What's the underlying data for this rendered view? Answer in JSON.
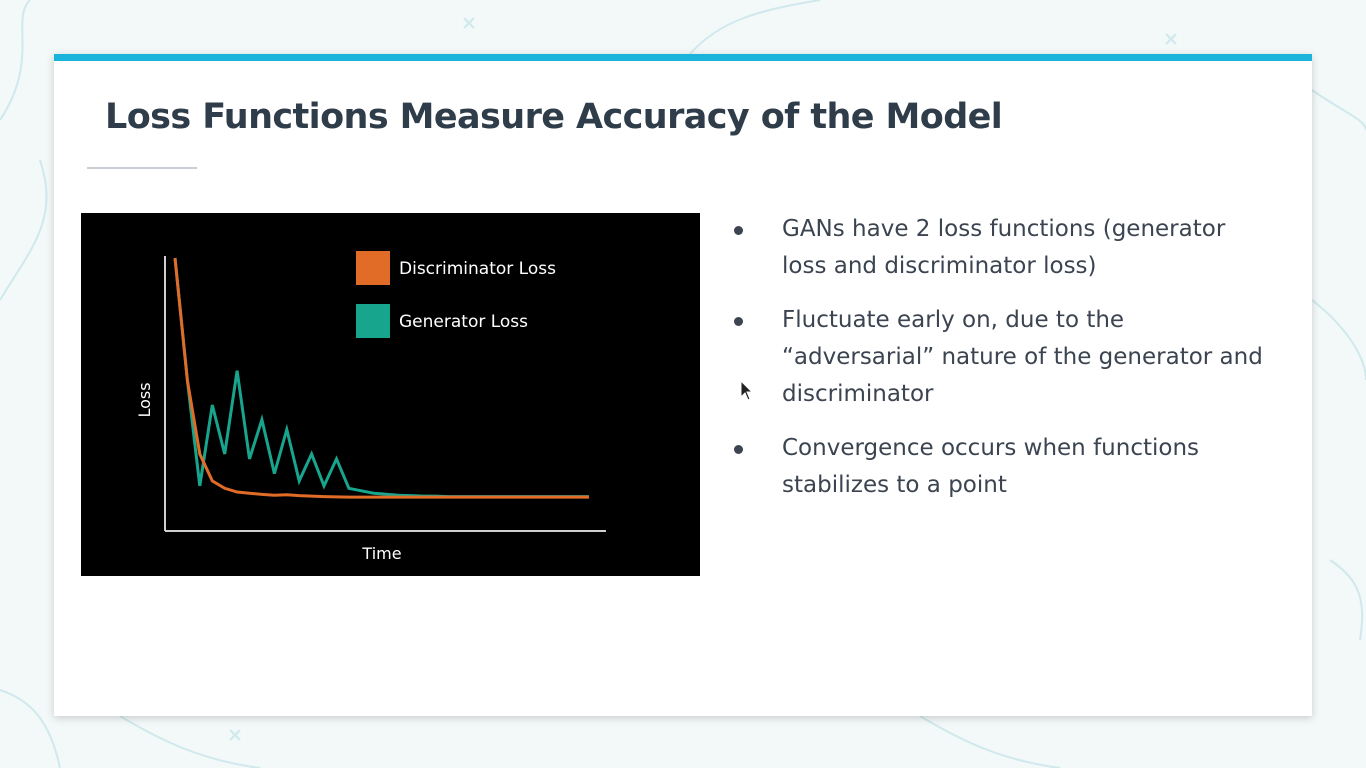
{
  "slide": {
    "title": "Loss Functions Measure Accuracy of the Model",
    "bullets": [
      "GANs have 2 loss functions (generator loss and discriminator loss)",
      "Fluctuate early on, due to the “adversarial” nature of the generator and discriminator",
      "Convergence occurs when functions stabilizes to a point"
    ]
  },
  "colors": {
    "accent": "#1ab3dc",
    "discriminator": "#e06c28",
    "generator": "#18a58e"
  },
  "chart_data": {
    "type": "line",
    "title": "",
    "xlabel": "Time",
    "ylabel": "Loss",
    "grid": false,
    "legend_placement": "top-right",
    "xlim": [
      0,
      100
    ],
    "ylim": [
      0,
      100
    ],
    "x": [
      0,
      3,
      6,
      9,
      12,
      15,
      18,
      21,
      24,
      27,
      30,
      33,
      36,
      39,
      42,
      45,
      48,
      51,
      54,
      57,
      60,
      63,
      66,
      69,
      72,
      75,
      78,
      81,
      84,
      87,
      90,
      93,
      96,
      99,
      100
    ],
    "series": [
      {
        "name": "Discriminator Loss",
        "values": [
          100,
          50,
          20,
          9,
          6,
          4.5,
          4,
          3.5,
          3.2,
          3.4,
          3,
          2.8,
          2.6,
          2.5,
          2.4,
          2.4,
          2.4,
          2.4,
          2.4,
          2.4,
          2.4,
          2.4,
          2.4,
          2.4,
          2.4,
          2.4,
          2.4,
          2.4,
          2.4,
          2.4,
          2.4,
          2.4,
          2.4,
          2.4,
          2.4
        ]
      },
      {
        "name": "Generator Loss",
        "values": [
          100,
          50,
          7,
          40,
          20,
          54,
          18,
          34,
          12,
          30,
          9,
          20,
          7,
          18,
          6,
          5,
          4,
          3.6,
          3.2,
          3,
          2.8,
          2.8,
          2.6,
          2.6,
          2.6,
          2.6,
          2.6,
          2.6,
          2.6,
          2.6,
          2.6,
          2.6,
          2.6,
          2.6,
          2.6
        ]
      }
    ]
  }
}
